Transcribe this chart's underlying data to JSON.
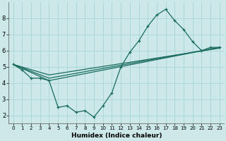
{
  "xlabel": "Humidex (Indice chaleur)",
  "background_color": "#cce8e8",
  "line_color": "#1a6b60",
  "grid_color": "#aad4d4",
  "xlim": [
    -0.5,
    23.5
  ],
  "ylim": [
    1.5,
    9.0
  ],
  "xticks": [
    0,
    1,
    2,
    3,
    4,
    5,
    6,
    7,
    8,
    9,
    10,
    11,
    12,
    13,
    14,
    15,
    16,
    17,
    18,
    19,
    20,
    21,
    22,
    23
  ],
  "yticks": [
    2,
    3,
    4,
    5,
    6,
    7,
    8
  ],
  "main_x": [
    0,
    1,
    2,
    3,
    4,
    5,
    6,
    7,
    8,
    9,
    10,
    11,
    12,
    13,
    14,
    15,
    16,
    17,
    18,
    19,
    20,
    21,
    22,
    23
  ],
  "main_y": [
    5.15,
    4.8,
    4.3,
    4.3,
    4.15,
    2.5,
    2.6,
    2.2,
    2.3,
    1.9,
    2.6,
    3.4,
    5.0,
    5.9,
    6.6,
    7.5,
    8.2,
    8.55,
    7.85,
    7.3,
    6.55,
    6.0,
    6.2,
    6.2
  ],
  "straight_lines": [
    {
      "x": [
        0,
        4,
        23
      ],
      "y": [
        5.15,
        4.15,
        6.2
      ]
    },
    {
      "x": [
        0,
        4,
        23
      ],
      "y": [
        5.15,
        4.3,
        6.2
      ]
    },
    {
      "x": [
        0,
        4,
        23
      ],
      "y": [
        5.15,
        4.5,
        6.15
      ]
    }
  ]
}
